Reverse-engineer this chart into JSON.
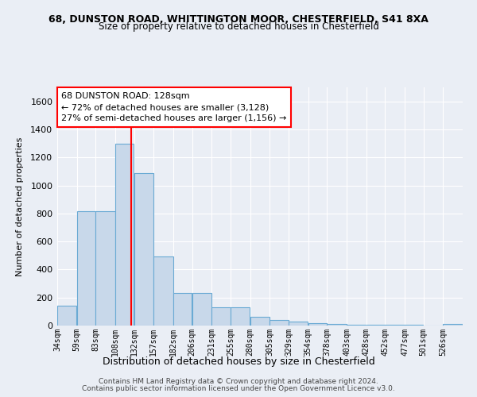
{
  "title1": "68, DUNSTON ROAD, WHITTINGTON MOOR, CHESTERFIELD, S41 8XA",
  "title2": "Size of property relative to detached houses in Chesterfield",
  "xlabel": "Distribution of detached houses by size in Chesterfield",
  "ylabel": "Number of detached properties",
  "footer1": "Contains HM Land Registry data © Crown copyright and database right 2024.",
  "footer2": "Contains public sector information licensed under the Open Government Licence v3.0.",
  "annotation_title": "68 DUNSTON ROAD: 128sqm",
  "annotation_line1": "← 72% of detached houses are smaller (3,128)",
  "annotation_line2": "27% of semi-detached houses are larger (1,156) →",
  "bar_color": "#c8d8ea",
  "bar_edge_color": "#6aaad4",
  "red_line_x": 128,
  "categories": [
    "34sqm",
    "59sqm",
    "83sqm",
    "108sqm",
    "132sqm",
    "157sqm",
    "182sqm",
    "206sqm",
    "231sqm",
    "255sqm",
    "280sqm",
    "305sqm",
    "329sqm",
    "354sqm",
    "378sqm",
    "403sqm",
    "428sqm",
    "452sqm",
    "477sqm",
    "501sqm",
    "526sqm"
  ],
  "bin_edges": [
    34,
    59,
    83,
    108,
    132,
    157,
    182,
    206,
    231,
    255,
    280,
    305,
    329,
    354,
    378,
    403,
    428,
    452,
    477,
    501,
    526,
    551
  ],
  "values": [
    140,
    815,
    815,
    1295,
    1090,
    495,
    230,
    230,
    130,
    130,
    65,
    40,
    28,
    15,
    10,
    8,
    5,
    3,
    3,
    2,
    12
  ],
  "ylim": [
    0,
    1700
  ],
  "yticks": [
    0,
    200,
    400,
    600,
    800,
    1000,
    1200,
    1400,
    1600
  ],
  "bg_color": "#eaeef5",
  "grid_color": "#ffffff"
}
